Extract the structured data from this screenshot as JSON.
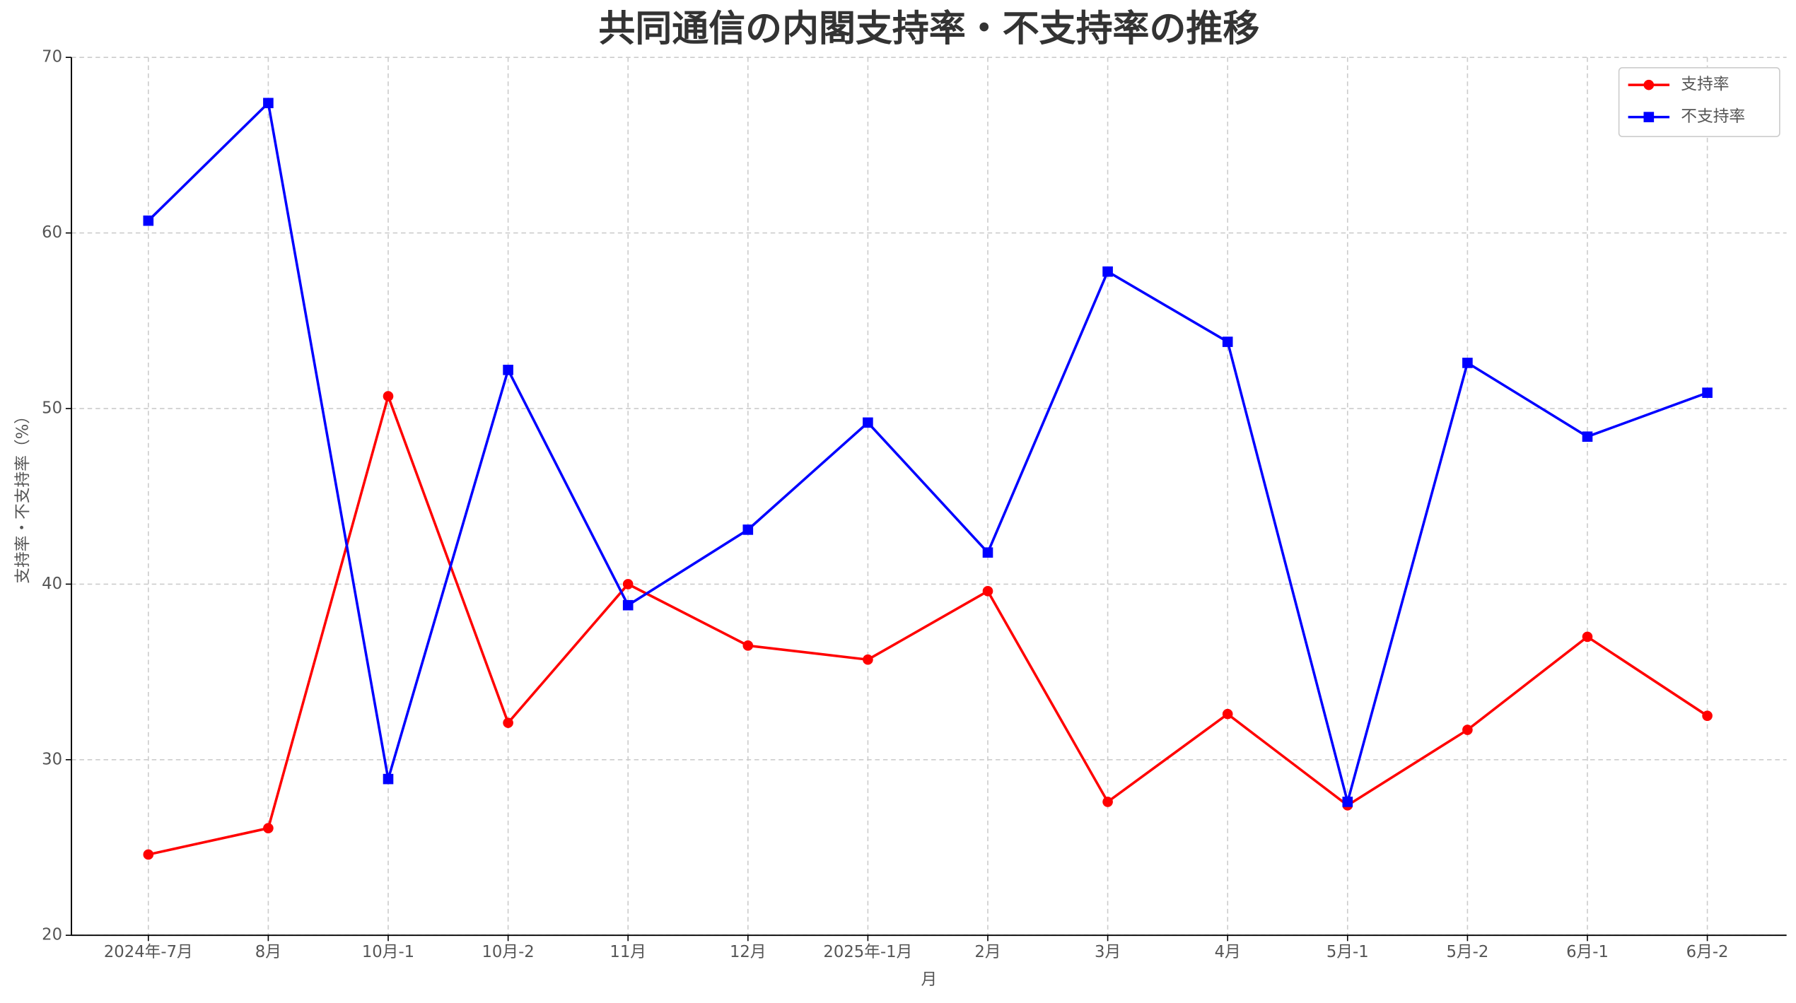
{
  "chart_data": {
    "type": "line",
    "title": "共同通信の内閣支持率・不支持率の推移",
    "x_label": "月",
    "y_label": "支持率・不支持率（%）",
    "categories": [
      "2024年-7月",
      "8月",
      "10月-1",
      "10月-2",
      "11月",
      "12月",
      "2025年-1月",
      "2月",
      "3月",
      "4月",
      "5月-1",
      "5月-2",
      "6月-1",
      "6月-2"
    ],
    "series": [
      {
        "name": "支持率",
        "color": "#ff0000",
        "marker": "circle",
        "values": [
          24.6,
          26.1,
          50.7,
          32.1,
          40.0,
          36.5,
          35.7,
          39.6,
          27.6,
          32.6,
          27.4,
          31.7,
          37.0,
          32.5
        ]
      },
      {
        "name": "不支持率",
        "color": "#0000ff",
        "marker": "square",
        "values": [
          60.7,
          67.4,
          28.9,
          52.2,
          38.8,
          43.1,
          49.2,
          41.8,
          57.8,
          53.8,
          27.6,
          52.6,
          48.4,
          50.9
        ]
      }
    ],
    "ylim": [
      20,
      70
    ],
    "yticks": [
      20,
      30,
      40,
      50,
      60,
      70
    ],
    "grid": true,
    "legend": "upper right"
  }
}
